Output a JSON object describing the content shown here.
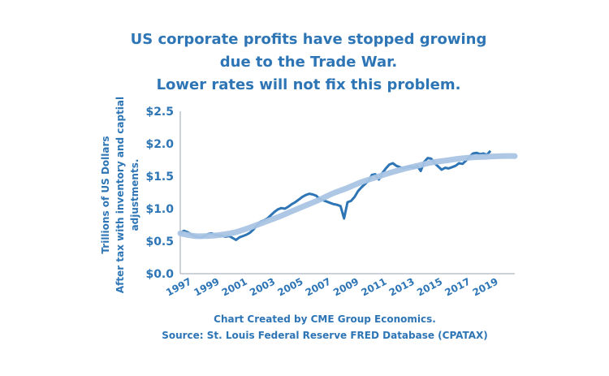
{
  "chart_data": {
    "type": "line",
    "title_lines": [
      "US corporate profits have stopped growing",
      "due to the Trade War.",
      "Lower rates will not fix this problem."
    ],
    "ylabel_lines": [
      "Trillions of US Dollars",
      "After tax with inventory and captial",
      "adjustments."
    ],
    "caption_lines": [
      "Chart Created by CME Group Economics.",
      "Source: St. Louis Federal Reserve FRED Database (CPATAX)"
    ],
    "ylim": [
      0,
      2.5
    ],
    "xlim": [
      1997,
      2021
    ],
    "y_ticks": [
      0,
      0.5,
      1.0,
      1.5,
      2.0,
      2.5
    ],
    "y_tick_labels": [
      "$0.0",
      "$0.5",
      "$1.0",
      "$1.5",
      "$2.0",
      "$2.5"
    ],
    "x_ticks": [
      1997,
      1999,
      2001,
      2003,
      2005,
      2007,
      2009,
      2011,
      2013,
      2015,
      2017,
      2019
    ],
    "x_tick_labels": [
      "1997",
      "1999",
      "2001",
      "2003",
      "2005",
      "2007",
      "2009",
      "2011",
      "2013",
      "2015",
      "2017",
      "2019"
    ],
    "grid": false,
    "legend": "none",
    "series": [
      {
        "color": "#2E75B6",
        "x": [
          1997.0,
          1997.25,
          1997.5,
          1997.75,
          1998.0,
          1998.25,
          1998.5,
          1998.75,
          1999.0,
          1999.25,
          1999.5,
          1999.75,
          2000.0,
          2000.25,
          2000.5,
          2000.75,
          2001.0,
          2001.25,
          2001.5,
          2001.75,
          2002.0,
          2002.25,
          2002.5,
          2002.75,
          2003.0,
          2003.25,
          2003.5,
          2003.75,
          2004.0,
          2004.25,
          2004.5,
          2004.75,
          2005.0,
          2005.25,
          2005.5,
          2005.75,
          2006.0,
          2006.25,
          2006.5,
          2006.75,
          2007.0,
          2007.25,
          2007.5,
          2007.75,
          2008.0,
          2008.25,
          2008.5,
          2008.75,
          2009.0,
          2009.25,
          2009.5,
          2009.75,
          2010.0,
          2010.25,
          2010.5,
          2010.75,
          2011.0,
          2011.25,
          2011.5,
          2011.75,
          2012.0,
          2012.25,
          2012.5,
          2012.75,
          2013.0,
          2013.25,
          2013.5,
          2013.75,
          2014.0,
          2014.25,
          2014.5,
          2014.75,
          2015.0,
          2015.25,
          2015.5,
          2015.75,
          2016.0,
          2016.25,
          2016.5,
          2016.75,
          2017.0,
          2017.25,
          2017.5,
          2017.75,
          2018.0,
          2018.25,
          2018.5,
          2018.75,
          2019.0,
          2019.25
        ],
        "values": [
          0.62,
          0.66,
          0.64,
          0.61,
          0.58,
          0.57,
          0.56,
          0.58,
          0.61,
          0.62,
          0.6,
          0.59,
          0.58,
          0.57,
          0.58,
          0.55,
          0.52,
          0.56,
          0.58,
          0.6,
          0.63,
          0.68,
          0.74,
          0.8,
          0.82,
          0.85,
          0.9,
          0.95,
          0.99,
          1.01,
          1.0,
          1.03,
          1.07,
          1.1,
          1.14,
          1.18,
          1.21,
          1.23,
          1.22,
          1.2,
          1.15,
          1.13,
          1.11,
          1.09,
          1.07,
          1.06,
          1.04,
          0.85,
          1.1,
          1.12,
          1.18,
          1.27,
          1.33,
          1.38,
          1.43,
          1.52,
          1.53,
          1.45,
          1.55,
          1.62,
          1.68,
          1.7,
          1.66,
          1.64,
          1.62,
          1.64,
          1.65,
          1.63,
          1.66,
          1.58,
          1.72,
          1.78,
          1.77,
          1.7,
          1.65,
          1.6,
          1.63,
          1.62,
          1.64,
          1.66,
          1.7,
          1.69,
          1.74,
          1.8,
          1.85,
          1.86,
          1.84,
          1.85,
          1.83,
          1.89
        ]
      },
      {
        "color": "#A9C4E4",
        "x": [
          1997.0,
          1998.0,
          1999.0,
          2000.0,
          2001.0,
          2002.0,
          2003.0,
          2004.0,
          2005.0,
          2006.0,
          2007.0,
          2008.0,
          2009.0,
          2010.0,
          2011.0,
          2012.0,
          2013.0,
          2014.0,
          2015.0,
          2016.0,
          2017.0,
          2018.0,
          2019.0,
          2020.0,
          2021.0
        ],
        "values": [
          0.62,
          0.58,
          0.58,
          0.6,
          0.64,
          0.71,
          0.79,
          0.87,
          0.96,
          1.05,
          1.14,
          1.24,
          1.32,
          1.41,
          1.48,
          1.55,
          1.61,
          1.66,
          1.71,
          1.74,
          1.77,
          1.79,
          1.8,
          1.81,
          1.81
        ]
      }
    ]
  }
}
